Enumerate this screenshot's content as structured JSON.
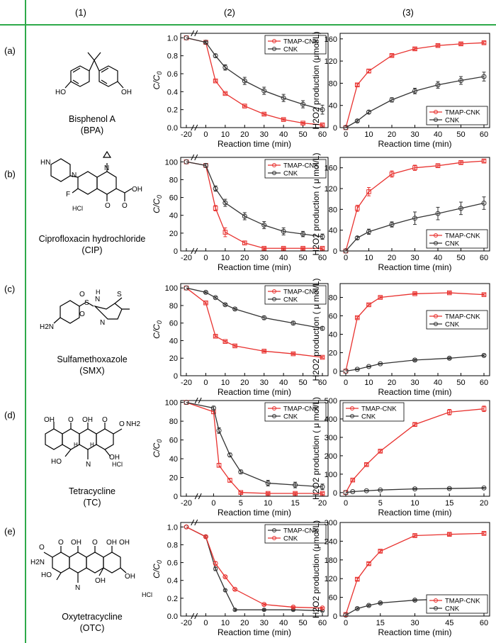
{
  "headers": [
    "(1)",
    "(2)",
    "(3)"
  ],
  "colors": {
    "tmap": "#e8312e",
    "cnk": "#333333",
    "grid": "#2eaa4a"
  },
  "rows": [
    {
      "label": "(a)",
      "compound": {
        "name": "Bisphenol A",
        "abbr": "(BPA)",
        "atoms": [
          "HO",
          "OH"
        ]
      },
      "degradation": {
        "type": "line",
        "ylabel": "C/C",
        "ylabel_sub": "0",
        "xlabel": "Reaction time (min)",
        "xticks": [
          "-20",
          "0",
          "10",
          "20",
          "30",
          "40",
          "50",
          "60"
        ],
        "yticks": [
          "0.0",
          "0.2",
          "0.4",
          "0.6",
          "0.8",
          "1.0"
        ],
        "ylim": [
          0,
          1.05
        ],
        "xbreak": true,
        "legend_pos": "top-right",
        "series": [
          {
            "name": "TMAP-CNK",
            "x": [
              -20,
              0,
              5,
              10,
              20,
              30,
              40,
              50,
              60
            ],
            "values": [
              1.0,
              0.95,
              0.52,
              0.38,
              0.24,
              0.15,
              0.09,
              0.05,
              0.03
            ],
            "err": [
              0,
              0.02,
              0.01,
              0.01,
              0.01,
              0.01,
              0.01,
              0.01,
              0.01
            ]
          },
          {
            "name": "CNK",
            "x": [
              -20,
              0,
              5,
              10,
              20,
              30,
              40,
              50,
              60
            ],
            "values": [
              1.0,
              0.95,
              0.8,
              0.67,
              0.52,
              0.41,
              0.33,
              0.26,
              0.2
            ],
            "err": [
              0,
              0.01,
              0.02,
              0.03,
              0.04,
              0.04,
              0.04,
              0.04,
              0.05
            ]
          }
        ]
      },
      "h2o2": {
        "type": "line",
        "ylabel": "H2O2 production (μmol/L)",
        "xlabel": "Reaction time (min)",
        "xticks": [
          "0",
          "10",
          "20",
          "30",
          "40",
          "50",
          "60"
        ],
        "yticks": [
          "0",
          "40",
          "80",
          "120",
          "160"
        ],
        "ylim": [
          0,
          170
        ],
        "legend_pos": "bottom-right",
        "series": [
          {
            "name": "TMAP-CNK",
            "x": [
              0,
              5,
              10,
              20,
              30,
              40,
              50,
              60
            ],
            "values": [
              0,
              77,
              102,
              130,
              142,
              148,
              151,
              153
            ],
            "err": [
              0,
              2,
              3,
              2,
              2,
              2,
              2,
              2
            ]
          },
          {
            "name": "CNK",
            "x": [
              0,
              5,
              10,
              20,
              30,
              40,
              50,
              60
            ],
            "values": [
              0,
              12,
              28,
              50,
              66,
              77,
              85,
              92
            ],
            "err": [
              0,
              2,
              3,
              4,
              5,
              6,
              7,
              8
            ]
          }
        ]
      }
    },
    {
      "label": "(b)",
      "compound": {
        "name": "Ciprofloxacin hydrochloride",
        "abbr": "(CIP)",
        "atoms": [
          "HN",
          "N",
          "N",
          "F",
          "O",
          "O",
          "OH",
          "HCl"
        ]
      },
      "degradation": {
        "type": "line",
        "ylabel": "C/C",
        "ylabel_sub": "0",
        "xlabel": "Reaction time (min)",
        "xticks": [
          "-20",
          "0",
          "10",
          "20",
          "30",
          "40",
          "50",
          "60"
        ],
        "yticks": [
          "0",
          "20",
          "40",
          "60",
          "80",
          "100"
        ],
        "ylim": [
          0,
          105
        ],
        "xbreak": true,
        "legend_pos": "top-right",
        "series": [
          {
            "name": "TMAP-CNK",
            "x": [
              -20,
              0,
              5,
              10,
              20,
              30,
              40,
              50,
              60
            ],
            "values": [
              100,
              96,
              48,
              21,
              9,
              3,
              3,
              3,
              3
            ],
            "err": [
              0,
              2,
              3,
              5,
              2,
              1,
              1,
              1,
              1
            ]
          },
          {
            "name": "CNK",
            "x": [
              -20,
              0,
              5,
              10,
              20,
              30,
              40,
              50,
              60
            ],
            "values": [
              100,
              96,
              70,
              54,
              39,
              29,
              22,
              19,
              16
            ],
            "err": [
              0,
              2,
              3,
              4,
              4,
              4,
              4,
              3,
              3
            ]
          }
        ]
      },
      "h2o2": {
        "type": "line",
        "ylabel": "H2O2 production ( μ mol/L)",
        "xlabel": "Reaction time (min)",
        "xticks": [
          "0",
          "10",
          "20",
          "30",
          "40",
          "50",
          "60"
        ],
        "yticks": [
          "0",
          "40",
          "80",
          "120",
          "160"
        ],
        "ylim": [
          0,
          180
        ],
        "legend_pos": "bottom-right",
        "series": [
          {
            "name": "TMAP-CNK",
            "x": [
              0,
              5,
              10,
              20,
              30,
              40,
              50,
              60
            ],
            "values": [
              0,
              82,
              114,
              148,
              160,
              164,
              170,
              173
            ],
            "err": [
              0,
              6,
              8,
              6,
              5,
              3,
              3,
              3
            ]
          },
          {
            "name": "CNK",
            "x": [
              0,
              5,
              10,
              20,
              30,
              40,
              50,
              60
            ],
            "values": [
              0,
              25,
              37,
              51,
              63,
              72,
              82,
              92
            ],
            "err": [
              0,
              3,
              5,
              5,
              12,
              12,
              12,
              12
            ]
          }
        ]
      }
    },
    {
      "label": "(c)",
      "compound": {
        "name": "Sulfamethoxazole",
        "abbr": "(SMX)",
        "atoms": [
          "H2N",
          "O",
          "O",
          "S",
          "N",
          "H",
          "N",
          "S"
        ]
      },
      "degradation": {
        "type": "line",
        "ylabel": "C/C",
        "ylabel_sub": "0",
        "xlabel": "Reaction time (min)",
        "xticks": [
          "-20",
          "0",
          "10",
          "20",
          "30",
          "40",
          "50",
          "60"
        ],
        "yticks": [
          "0",
          "20",
          "40",
          "60",
          "80",
          "100"
        ],
        "ylim": [
          0,
          105
        ],
        "xbreak": false,
        "legend_pos": "top-right",
        "series": [
          {
            "name": "TMAP-CNK",
            "x": [
              -20,
              0,
              5,
              10,
              15,
              30,
              45,
              60
            ],
            "values": [
              100,
              83,
              45,
              39,
              34,
              28,
              25,
              21
            ],
            "err": [
              0,
              1,
              1,
              1,
              1,
              1,
              1,
              1
            ]
          },
          {
            "name": "CNK",
            "x": [
              -20,
              0,
              5,
              10,
              15,
              30,
              45,
              60
            ],
            "values": [
              100,
              95,
              89,
              81,
              76,
              66,
              60,
              54
            ],
            "err": [
              0,
              1,
              1,
              1,
              1,
              2,
              2,
              2
            ]
          }
        ]
      },
      "h2o2": {
        "type": "line",
        "ylabel": "H2O2 production ( μ mol/L)",
        "xlabel": "Reaction time (min)",
        "xticks": [
          "0",
          "10",
          "20",
          "30",
          "40",
          "50",
          "60"
        ],
        "yticks": [
          "0",
          "20",
          "40",
          "60",
          "80"
        ],
        "ylim": [
          -5,
          95
        ],
        "legend_pos": "right",
        "series": [
          {
            "name": "TMAP-CNK",
            "x": [
              0,
              5,
              10,
              15,
              30,
              45,
              60
            ],
            "values": [
              0,
              58,
              72,
              80,
              84,
              85,
              83
            ],
            "err": [
              0,
              1,
              1,
              1,
              1,
              1,
              1
            ]
          },
          {
            "name": "CNK",
            "x": [
              0,
              5,
              10,
              15,
              30,
              45,
              60
            ],
            "values": [
              0,
              2,
              5,
              8,
              12,
              14,
              17
            ],
            "err": [
              0,
              0.5,
              0.5,
              0.5,
              1,
              1,
              1
            ]
          }
        ]
      }
    },
    {
      "label": "(d)",
      "compound": {
        "name": "Tetracycline",
        "abbr": "(TC)",
        "atoms": [
          "OH",
          "O",
          "OH",
          "O",
          "O",
          "NH2",
          "HO",
          "N",
          "HCl",
          "H",
          "H",
          "OH"
        ]
      },
      "degradation": {
        "type": "line",
        "ylabel": "C/C",
        "ylabel_sub": "0",
        "xlabel": "Reaction time (min)",
        "xticks": [
          "-20",
          "0",
          "5",
          "10",
          "15",
          "20"
        ],
        "yticks": [
          "0",
          "20",
          "40",
          "60",
          "80",
          "100"
        ],
        "ylim": [
          0,
          102
        ],
        "xbreak": true,
        "legend_pos": "top-right",
        "series": [
          {
            "name": "TMAP-CNK",
            "x": [
              -20,
              0,
              1,
              3,
              5,
              10,
              15,
              20
            ],
            "values": [
              100,
              90,
              33,
              17,
              4,
              3,
              3,
              3
            ],
            "err": [
              0,
              2,
              2,
              2,
              1,
              1,
              1,
              1
            ]
          },
          {
            "name": "CNK",
            "x": [
              -20,
              0,
              1,
              3,
              5,
              10,
              15,
              20
            ],
            "values": [
              100,
              94,
              70,
              44,
              26,
              14,
              12,
              10
            ],
            "err": [
              0,
              2,
              3,
              2,
              2,
              3,
              3,
              3
            ]
          }
        ]
      },
      "h2o2": {
        "type": "line",
        "ylabel": "H2O2 production ( μ mol/L)",
        "xlabel": "Reaction time (min)",
        "xticks": [
          "0",
          "5",
          "10",
          "15",
          "20"
        ],
        "yticks": [
          "0",
          "100",
          "200",
          "300",
          "400",
          "500"
        ],
        "ylim": [
          -20,
          500
        ],
        "legend_pos": "top-left",
        "series": [
          {
            "name": "TMAP-CNK",
            "x": [
              0,
              1,
              3,
              5,
              10,
              15,
              20
            ],
            "values": [
              0,
              68,
              152,
              225,
              370,
              437,
              455
            ],
            "err": [
              0,
              5,
              6,
              6,
              8,
              15,
              15
            ]
          },
          {
            "name": "CNK",
            "x": [
              0,
              1,
              3,
              5,
              10,
              15,
              20
            ],
            "values": [
              0,
              5,
              10,
              14,
              20,
              22,
              25
            ],
            "err": [
              0,
              1,
              2,
              2,
              3,
              3,
              3
            ]
          }
        ]
      }
    },
    {
      "label": "(e)",
      "compound": {
        "name": "Oxytetracycline",
        "abbr": "(OTC)",
        "atoms": [
          "O",
          "OH",
          "O",
          "OH",
          "O",
          "OH",
          "H2N",
          "HO",
          "N",
          "OH",
          "OH",
          "HCl"
        ]
      },
      "degradation": {
        "type": "line",
        "ylabel": "C/C",
        "ylabel_sub": "0",
        "xlabel": "Reaction time (min)",
        "xticks": [
          "-20",
          "0",
          "10",
          "20",
          "30",
          "40",
          "50",
          "60"
        ],
        "yticks": [
          "0.0",
          "0.2",
          "0.4",
          "0.6",
          "0.8",
          "1.0"
        ],
        "ylim": [
          0,
          1.05
        ],
        "xbreak": true,
        "legend_pos": "top-right",
        "series": [
          {
            "name": "TMAP-CNK",
            "x": [
              -20,
              0,
              5,
              10,
              15,
              30,
              45,
              60
            ],
            "values": [
              1.0,
              0.89,
              0.53,
              0.29,
              0.07,
              0.07,
              0.07,
              0.06
            ],
            "err": [
              0,
              0.01,
              0.02,
              0.01,
              0.01,
              0.01,
              0.01,
              0.01
            ]
          },
          {
            "name": "CNK",
            "x": [
              -20,
              0,
              5,
              10,
              15,
              30,
              45,
              60
            ],
            "values": [
              1.0,
              0.89,
              0.59,
              0.44,
              0.3,
              0.13,
              0.1,
              0.09
            ],
            "err": [
              0,
              0.01,
              0.02,
              0.01,
              0.01,
              0.01,
              0.01,
              0.01
            ]
          }
        ]
      },
      "h2o2": {
        "type": "line",
        "ylabel": "H2O2 production (μmol/L)",
        "xlabel": "Reaction time (min)",
        "xticks": [
          "0",
          "15",
          "30",
          "45",
          "60"
        ],
        "yticks": [
          "0",
          "60",
          "120",
          "180",
          "240",
          "300"
        ],
        "ylim": [
          0,
          300
        ],
        "legend_pos": "bottom-right",
        "series": [
          {
            "name": "TMAP-CNK",
            "x": [
              0,
              5,
              10,
              15,
              30,
              45,
              60
            ],
            "values": [
              5,
              118,
              168,
              208,
              258,
              262,
              265
            ],
            "err": [
              0,
              4,
              4,
              4,
              4,
              4,
              4
            ]
          },
          {
            "name": "CNK",
            "x": [
              0,
              5,
              10,
              15,
              30,
              45,
              60
            ],
            "values": [
              3,
              24,
              34,
              42,
              51,
              55,
              58
            ],
            "err": [
              0,
              3,
              3,
              3,
              3,
              3,
              3
            ]
          }
        ]
      }
    }
  ]
}
